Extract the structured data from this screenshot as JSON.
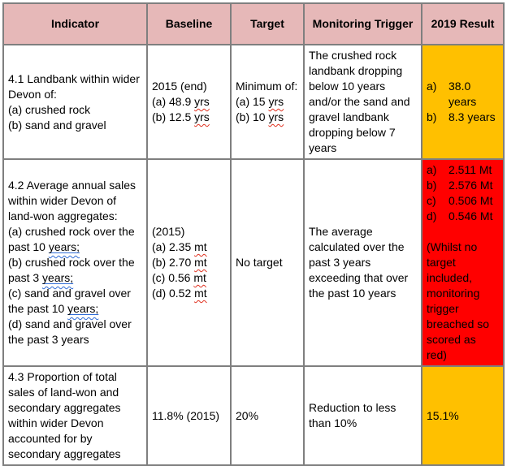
{
  "title": "Minerals monitoring indicators table",
  "colors": {
    "header_bg": "#e6b8b8",
    "amber": "#ffc000",
    "red": "#ff0000",
    "border": "#7f7f7f",
    "spell_squiggle": "#e0301e",
    "grammar_mark": "#2e6bd6"
  },
  "table": {
    "headers": [
      "Indicator",
      "Baseline",
      "Target",
      "Monitoring Trigger",
      "2019 Result"
    ],
    "rows": [
      {
        "indicator": [
          [
            {
              "t": "4.1 Landbank within wider Devon of:"
            }
          ],
          [
            {
              "t": "(a) crushed rock"
            }
          ],
          [
            {
              "t": "(b) sand and gravel"
            }
          ]
        ],
        "baseline": [
          [
            {
              "t": "2015 (end)"
            }
          ],
          [
            {
              "t": "(a) 48.9 "
            },
            {
              "t": "yrs",
              "m": "sp"
            }
          ],
          [
            {
              "t": "(b) 12.5 "
            },
            {
              "t": "yrs",
              "m": "sp"
            }
          ]
        ],
        "target": [
          [
            {
              "t": "Minimum of:"
            }
          ],
          [
            {
              "t": "(a) 15 "
            },
            {
              "t": "yrs",
              "m": "sp"
            }
          ],
          [
            {
              "t": "(b) 10 "
            },
            {
              "t": "yrs",
              "m": "sp"
            }
          ]
        ],
        "trigger": "The crushed rock landbank dropping below 10 years and/or the sand and gravel landbank dropping below 7 years",
        "result": {
          "status": "amber",
          "items": [
            {
              "label": "a)",
              "text": "38.0 years"
            },
            {
              "label": "b)",
              "text": "8.3 years"
            }
          ]
        }
      },
      {
        "indicator": [
          [
            {
              "t": "4.2 Average annual sales within wider Devon of land-won aggregates:"
            }
          ],
          [
            {
              "t": "(a) crushed rock over the past 10 "
            },
            {
              "t": "years;",
              "m": "gr"
            }
          ],
          [
            {
              "t": "(b) crushed rock over the past 3 "
            },
            {
              "t": "years;",
              "m": "gr"
            }
          ],
          [
            {
              "t": "(c) sand and gravel over the past 10 "
            },
            {
              "t": "years;",
              "m": "gr"
            }
          ],
          [
            {
              "t": "(d) sand and gravel over the past 3 years"
            }
          ]
        ],
        "baseline": [
          [
            {
              "t": "(2015)"
            }
          ],
          [
            {
              "t": "(a) 2.35 "
            },
            {
              "t": "mt",
              "m": "sp"
            }
          ],
          [
            {
              "t": "(b) 2.70 "
            },
            {
              "t": "mt",
              "m": "sp"
            }
          ],
          [
            {
              "t": "(c) 0.56 "
            },
            {
              "t": "mt",
              "m": "sp"
            }
          ],
          [
            {
              "t": "(d) 0.52 "
            },
            {
              "t": "mt",
              "m": "sp"
            }
          ]
        ],
        "target": "No target",
        "trigger": "The average calculated over the past 3 years exceeding that over the past 10 years",
        "result": {
          "status": "red",
          "items": [
            {
              "label": "a)",
              "text": "2.511 Mt"
            },
            {
              "label": "b)",
              "text": "2.576 Mt"
            },
            {
              "label": "c)",
              "text": "0.506 Mt"
            },
            {
              "label": "d)",
              "text": "0.546 Mt"
            }
          ],
          "note": "(Whilst no target included, monitoring trigger breached so scored as red)"
        }
      },
      {
        "indicator": "4.3 Proportion of total sales of land-won and secondary aggregates within wider Devon accounted for by secondary aggregates",
        "baseline": "11.8% (2015)",
        "target": "20%",
        "trigger": "Reduction to less than 10%",
        "result": {
          "status": "amber",
          "text": "15.1%"
        }
      }
    ]
  }
}
